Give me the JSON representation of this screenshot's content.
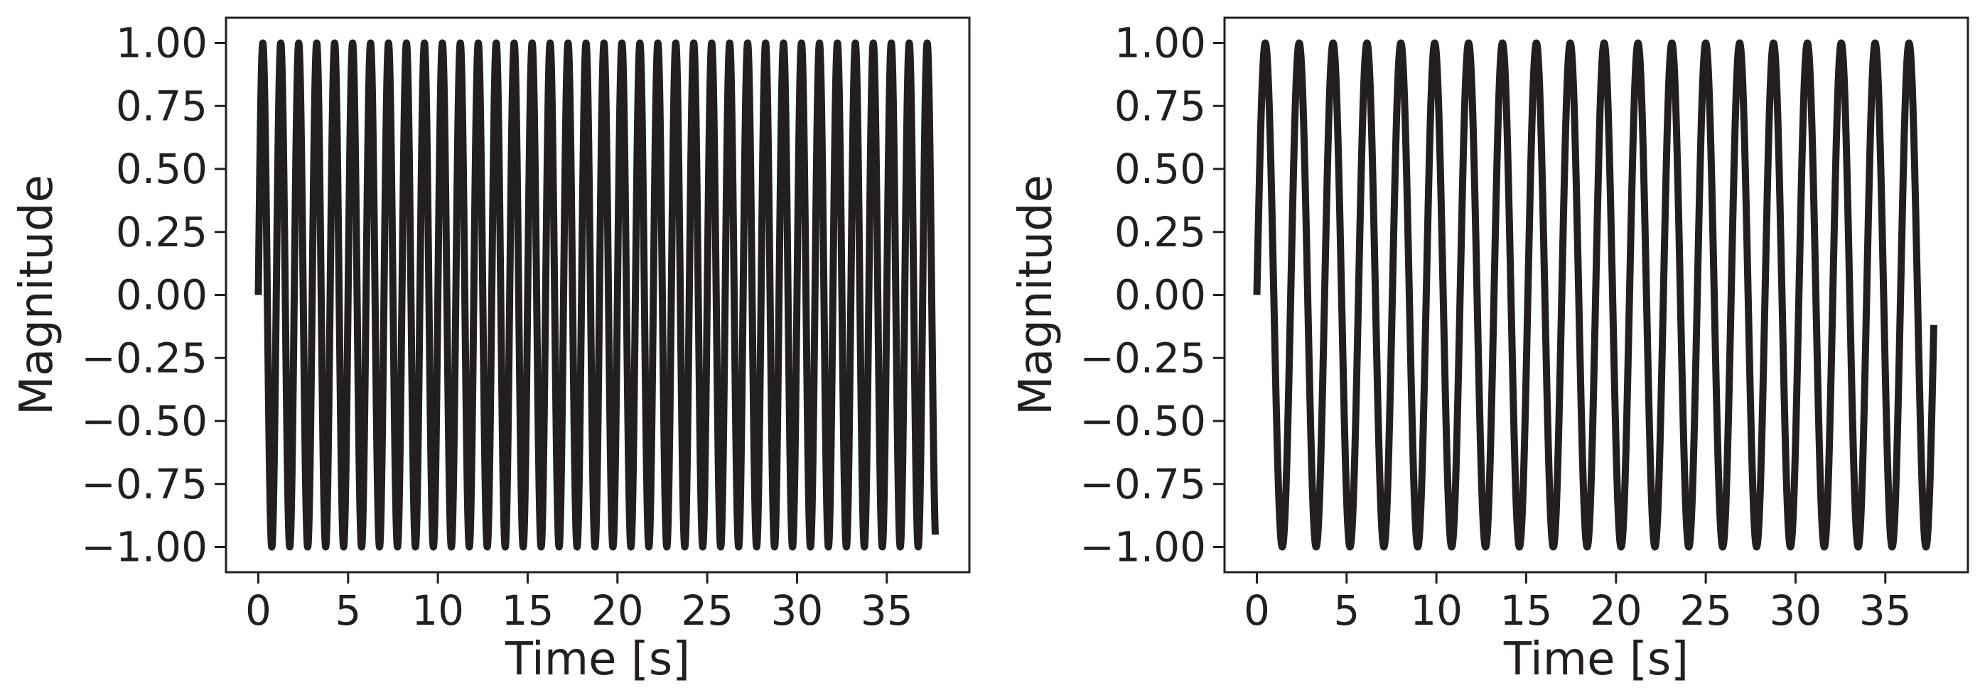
{
  "chart_data": [
    {
      "type": "line",
      "title": "",
      "xlabel": "Time [s]",
      "ylabel": "Magnitude",
      "xlim": [
        -1.8,
        39.6
      ],
      "ylim": [
        -1.1,
        1.1
      ],
      "xticks": [
        0,
        5,
        10,
        15,
        20,
        25,
        30,
        35
      ],
      "xtick_labels": [
        "0",
        "5",
        "10",
        "15",
        "20",
        "25",
        "30",
        "35"
      ],
      "yticks": [
        -1.0,
        -0.75,
        -0.5,
        -0.25,
        0.0,
        0.25,
        0.5,
        0.75,
        1.0
      ],
      "ytick_labels": [
        "−1.00",
        "−0.75",
        "−0.50",
        "−0.25",
        "0.00",
        "0.25",
        "0.50",
        "0.75",
        "1.00"
      ],
      "grid": false,
      "series": [
        {
          "color": "#231f20",
          "function": "sine",
          "amplitude": 1.0,
          "frequency_hz": 1.0,
          "t_start": 0.0,
          "t_end": 37.7
        }
      ]
    },
    {
      "type": "line",
      "title": "",
      "xlabel": "Time [s]",
      "ylabel": "Magnitude",
      "xlim": [
        -1.8,
        39.6
      ],
      "ylim": [
        -1.1,
        1.1
      ],
      "xticks": [
        0,
        5,
        10,
        15,
        20,
        25,
        30,
        35
      ],
      "xtick_labels": [
        "0",
        "5",
        "10",
        "15",
        "20",
        "25",
        "30",
        "35"
      ],
      "yticks": [
        -1.0,
        -0.75,
        -0.5,
        -0.25,
        0.0,
        0.25,
        0.5,
        0.75,
        1.0
      ],
      "ytick_labels": [
        "−1.00",
        "−0.75",
        "−0.50",
        "−0.25",
        "0.00",
        "0.25",
        "0.50",
        "0.75",
        "1.00"
      ],
      "grid": false,
      "series": [
        {
          "color": "#231f20",
          "function": "sine",
          "amplitude": 1.0,
          "frequency_hz": 0.53,
          "t_start": 0.0,
          "t_end": 37.7
        }
      ]
    }
  ]
}
